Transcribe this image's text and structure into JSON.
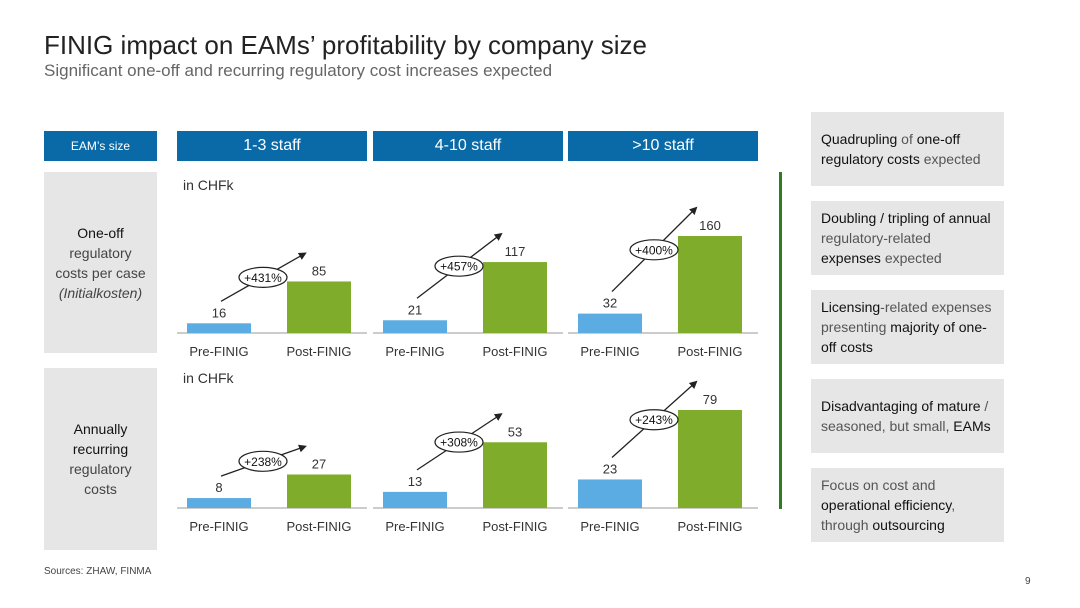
{
  "header": {
    "title": "FINIG impact on EAMs’ profitability by company size",
    "subtitle": "Significant one-off and recurring regulatory cost increases expected"
  },
  "size_label": "EAM’s size",
  "columns": [
    "1-3 staff",
    "4-10 staff",
    ">10 staff"
  ],
  "rows": [
    {
      "bold": "One-off",
      "lines": [
        "regulatory",
        "costs per case"
      ],
      "italic": "(Initialkosten)",
      "unit": "in CHFk"
    },
    {
      "bold": "Annually recurring",
      "lines": [
        "regulatory",
        "costs"
      ],
      "italic": "",
      "unit": "in CHFk"
    }
  ],
  "chart_data": [
    {
      "type": "bar",
      "panel": "One-off / 1-3 staff",
      "categories": [
        "Pre-FINIG",
        "Post-FINIG"
      ],
      "values": [
        16,
        85
      ],
      "change": "+431%"
    },
    {
      "type": "bar",
      "panel": "One-off / 4-10 staff",
      "categories": [
        "Pre-FINIG",
        "Post-FINIG"
      ],
      "values": [
        21,
        117
      ],
      "change": "+457%"
    },
    {
      "type": "bar",
      "panel": "One-off / >10 staff",
      "categories": [
        "Pre-FINIG",
        "Post-FINIG"
      ],
      "values": [
        32,
        160
      ],
      "change": "+400%"
    },
    {
      "type": "bar",
      "panel": "Annually recurring / 1-3 staff",
      "categories": [
        "Pre-FINIG",
        "Post-FINIG"
      ],
      "values": [
        8,
        27
      ],
      "change": "+238%"
    },
    {
      "type": "bar",
      "panel": "Annually recurring / 4-10 staff",
      "categories": [
        "Pre-FINIG",
        "Post-FINIG"
      ],
      "values": [
        13,
        53
      ],
      "change": "+308%"
    },
    {
      "type": "bar",
      "panel": "Annually recurring / >10 staff",
      "categories": [
        "Pre-FINIG",
        "Post-FINIG"
      ],
      "values": [
        23,
        79
      ],
      "change": "+243%"
    }
  ],
  "colors": {
    "pre": "#5aace3",
    "post": "#7fac2a",
    "header": "#0a6aa8",
    "panel": "#e6e6e7",
    "divider": "#2e7d1e"
  },
  "takeaways": [
    [
      {
        "t": "Quadrupling",
        "b": true
      },
      {
        "t": " of ",
        "b": false
      },
      {
        "t": "one-off regulatory costs",
        "b": true
      },
      {
        "t": " expected",
        "b": false
      }
    ],
    [
      {
        "t": "Doubling / tripling of annual",
        "b": true
      },
      {
        "t": " regulatory-related ",
        "b": false
      },
      {
        "t": "expenses",
        "b": true
      },
      {
        "t": " expected",
        "b": false
      }
    ],
    [
      {
        "t": "Licensing",
        "b": true
      },
      {
        "t": "-related expenses presenting ",
        "b": false
      },
      {
        "t": "majority of one-off costs",
        "b": true
      }
    ],
    [
      {
        "t": "Disadvantaging of mature",
        "b": true
      },
      {
        "t": " / seasoned, but small, ",
        "b": false
      },
      {
        "t": "EAMs",
        "b": true
      }
    ],
    [
      {
        "t": "Focus on cost and ",
        "b": false
      },
      {
        "t": "operational efficiency",
        "b": true
      },
      {
        "t": ", through ",
        "b": false
      },
      {
        "t": "outsourcing",
        "b": true
      }
    ]
  ],
  "footer": {
    "sources": "Sources: ZHAW, FINMA",
    "page": "9"
  }
}
